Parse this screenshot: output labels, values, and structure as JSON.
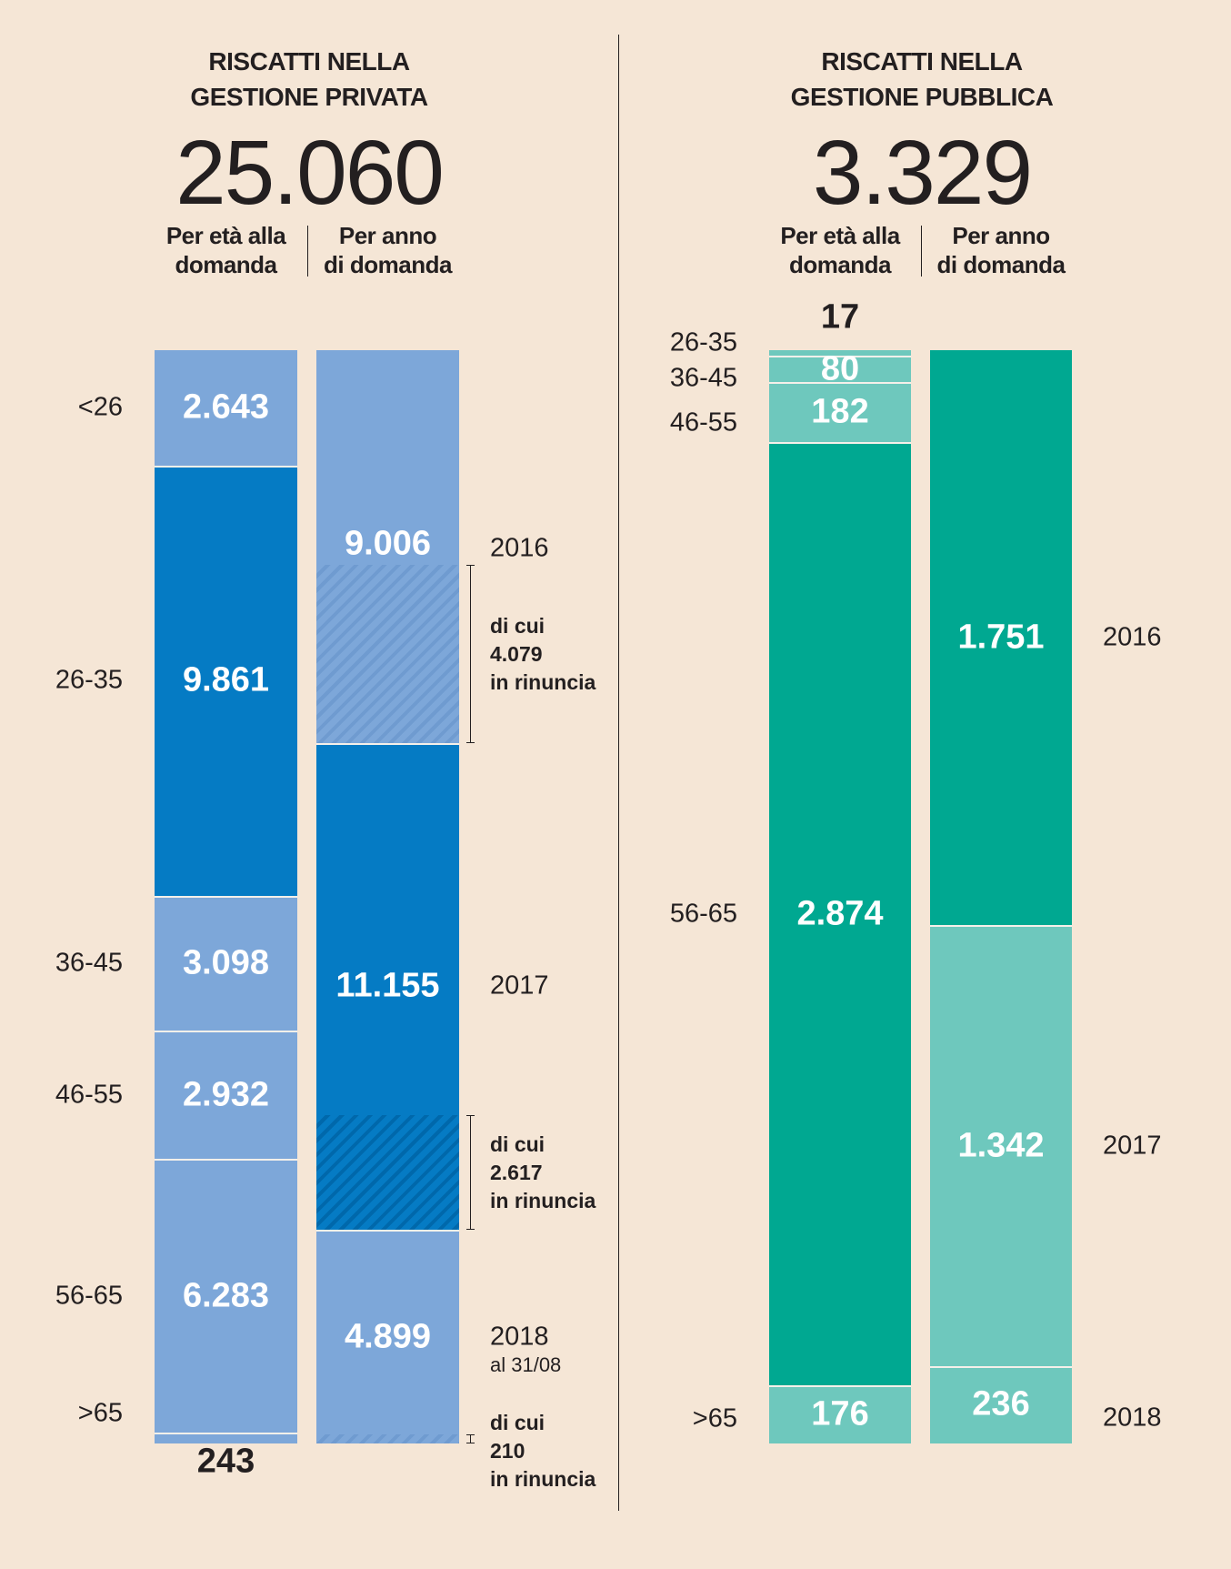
{
  "colors": {
    "background": "#f5e6d6",
    "private_light": "#7da7d9",
    "private_dark": "#057bc4",
    "public_dark": "#00a891",
    "public_light": "#6ec8bd",
    "text": "#231f20"
  },
  "chart_data": [
    {
      "type": "stacked-bar",
      "title": [
        "RISCATTI NELLA",
        "GESTIONE PRIVATA"
      ],
      "total": "25.060",
      "total_value": 25060,
      "subheads": {
        "age": [
          "Per età alla",
          "domanda"
        ],
        "year": [
          "Per anno",
          "di domanda"
        ]
      },
      "by_age": [
        {
          "label": "<26",
          "value": 2643,
          "text": "2.643"
        },
        {
          "label": "26-35",
          "value": 9861,
          "text": "9.861"
        },
        {
          "label": "36-45",
          "value": 3098,
          "text": "3.098"
        },
        {
          "label": "46-55",
          "value": 2932,
          "text": "2.932"
        },
        {
          "label": "56-65",
          "value": 6283,
          "text": "6.283"
        },
        {
          "label": ">65",
          "value": 243,
          "text": "243"
        }
      ],
      "by_year": [
        {
          "label": "2016",
          "sublabel": "",
          "value": 9006,
          "text": "9.006",
          "renuncia": 4079,
          "renuncia_text": [
            "di cui",
            "4.079",
            "in rinuncia"
          ]
        },
        {
          "label": "2017",
          "sublabel": "",
          "value": 11155,
          "text": "11.155",
          "renuncia": 2617,
          "renuncia_text": [
            "di cui",
            "2.617",
            "in rinuncia"
          ]
        },
        {
          "label": "2018",
          "sublabel": "al 31/08",
          "value": 4899,
          "text": "4.899",
          "renuncia": 210,
          "renuncia_text": [
            "di cui",
            "210",
            "in rinuncia"
          ]
        }
      ]
    },
    {
      "type": "stacked-bar",
      "title": [
        "RISCATTI NELLA",
        "GESTIONE PUBBLICA"
      ],
      "total": "3.329",
      "total_value": 3329,
      "subheads": {
        "age": [
          "Per età alla",
          "domanda"
        ],
        "year": [
          "Per anno",
          "di domanda"
        ]
      },
      "by_age": [
        {
          "label": "26-35",
          "value": 17,
          "text": "17"
        },
        {
          "label": "36-45",
          "value": 80,
          "text": "80"
        },
        {
          "label": "46-55",
          "value": 182,
          "text": "182"
        },
        {
          "label": "56-65",
          "value": 2874,
          "text": "2.874"
        },
        {
          "label": ">65",
          "value": 176,
          "text": "176"
        }
      ],
      "by_year": [
        {
          "label": "2016",
          "sublabel": "",
          "value": 1751,
          "text": "1.751"
        },
        {
          "label": "2017",
          "sublabel": "",
          "value": 1342,
          "text": "1.342"
        },
        {
          "label": "2018",
          "sublabel": "",
          "value": 236,
          "text": "236"
        }
      ]
    }
  ]
}
